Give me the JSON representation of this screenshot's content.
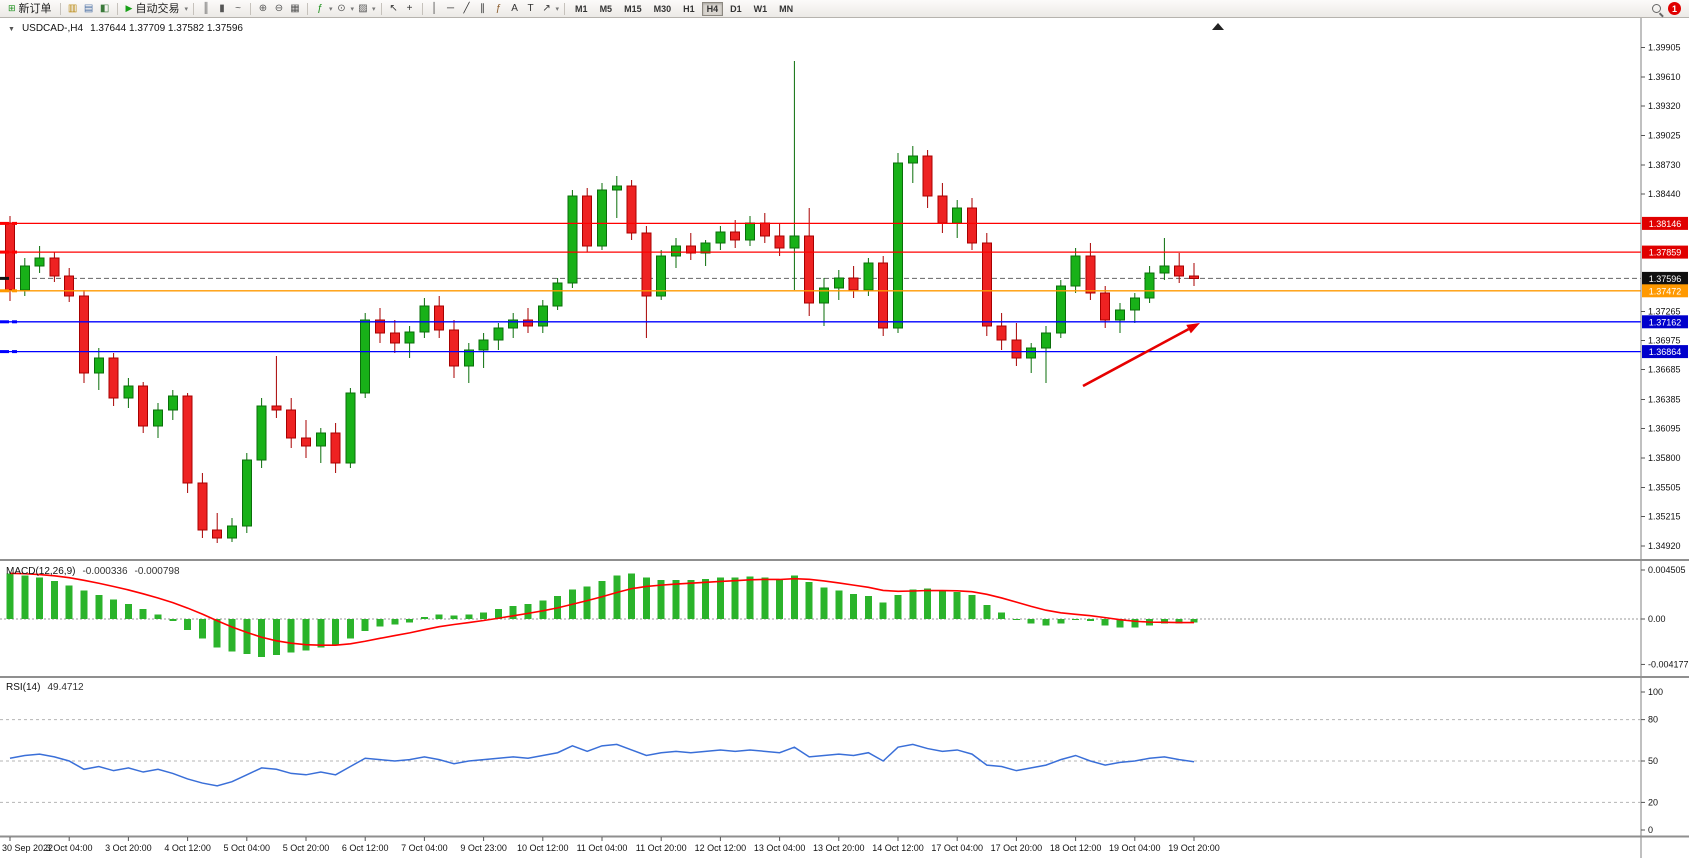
{
  "toolbar": {
    "groups": [
      {
        "items": [
          {
            "kind": "labeled",
            "name": "new-order-button",
            "glyph": "⊞",
            "glyph_color": "#1a8f1a",
            "label": "新订单"
          }
        ]
      },
      {
        "items": [
          {
            "kind": "icon",
            "name": "market-watch-icon",
            "glyph": "▥",
            "color": "#b8860b"
          },
          {
            "kind": "icon",
            "name": "data-window-icon",
            "glyph": "▤",
            "color": "#4a6fa5"
          },
          {
            "kind": "icon",
            "name": "navigator-icon",
            "glyph": "◧",
            "color": "#3a7a3a"
          }
        ]
      },
      {
        "items": [
          {
            "kind": "labeled",
            "name": "autotrading-button",
            "glyph": "▶",
            "glyph_color": "#17a017",
            "label": "自动交易"
          },
          {
            "kind": "caret",
            "name": "autotrading-caret"
          }
        ]
      },
      {
        "items": [
          {
            "kind": "icon",
            "name": "bars-chart-icon",
            "glyph": "║",
            "color": "#555555"
          },
          {
            "kind": "icon",
            "name": "candlestick-chart-icon",
            "glyph": "▮",
            "color": "#555555"
          },
          {
            "kind": "icon",
            "name": "line-chart-icon",
            "glyph": "~",
            "color": "#555555"
          }
        ]
      },
      {
        "items": [
          {
            "kind": "icon",
            "name": "zoom-in-icon",
            "glyph": "⊕",
            "color": "#555555"
          },
          {
            "kind": "icon",
            "name": "zoom-out-icon",
            "glyph": "⊖",
            "color": "#555555"
          },
          {
            "kind": "icon",
            "name": "tile-windows-icon",
            "glyph": "▦",
            "color": "#555555"
          }
        ]
      },
      {
        "items": [
          {
            "kind": "icon",
            "name": "indicators-icon",
            "glyph": "ƒ",
            "color": "#1a8f1a"
          },
          {
            "kind": "caret",
            "name": "indicators-caret"
          },
          {
            "kind": "icon",
            "name": "periods-icon",
            "glyph": "⊙",
            "color": "#555555"
          },
          {
            "kind": "caret",
            "name": "periods-caret"
          },
          {
            "kind": "icon",
            "name": "templates-icon",
            "glyph": "▨",
            "color": "#555555"
          },
          {
            "kind": "caret",
            "name": "templates-caret"
          }
        ]
      },
      {
        "items": [
          {
            "kind": "icon",
            "name": "cursor-icon",
            "glyph": "↖",
            "color": "#333333"
          },
          {
            "kind": "icon",
            "name": "crosshair-icon",
            "glyph": "+",
            "color": "#333333"
          }
        ]
      },
      {
        "items": [
          {
            "kind": "icon",
            "name": "vertical-line-icon",
            "glyph": "│",
            "color": "#333333"
          },
          {
            "kind": "icon",
            "name": "horizontal-line-icon",
            "glyph": "─",
            "color": "#333333"
          },
          {
            "kind": "icon",
            "name": "trendline-icon",
            "glyph": "╱",
            "color": "#333333"
          },
          {
            "kind": "icon",
            "name": "equidistant-channel-icon",
            "glyph": "∥",
            "color": "#333333"
          },
          {
            "kind": "icon",
            "name": "fibonacci-icon",
            "glyph": "ƒ",
            "color": "#8a5a2b"
          },
          {
            "kind": "icon",
            "name": "text-icon",
            "glyph": "A",
            "color": "#333333"
          },
          {
            "kind": "icon",
            "name": "text-label-icon",
            "glyph": "T",
            "color": "#333333"
          },
          {
            "kind": "icon",
            "name": "arrows-icon",
            "glyph": "↗",
            "color": "#333333"
          },
          {
            "kind": "caret",
            "name": "arrows-caret"
          }
        ]
      }
    ],
    "timeframes": [
      "M1",
      "M5",
      "M15",
      "M30",
      "H1",
      "H4",
      "D1",
      "W1",
      "MN"
    ],
    "active_timeframe": "H4",
    "right_items": [
      {
        "kind": "mag",
        "name": "search-icon"
      },
      {
        "kind": "badge",
        "name": "notification-badge",
        "text": "1",
        "color": "#e00000"
      }
    ]
  },
  "chart": {
    "menu_glyph": "▼",
    "symbol_period": "USDCAD-,H4",
    "ohlc": "1.37644 1.37709 1.37582 1.37596"
  },
  "indicators": {
    "macd": {
      "label": "MACD(12,26,9)",
      "main_value": "-0.000336",
      "signal_value": "-0.000798"
    },
    "rsi": {
      "label": "RSI(14)",
      "value": "49.4712"
    }
  },
  "colors": {
    "bull": "#18b118",
    "bull_border": "#0a6e0a",
    "bear": "#ee2222",
    "bear_border": "#a80000",
    "macd_bar": "#2bb32b",
    "macd_signal": "#ff0000",
    "rsi_line": "#3a6fd8"
  },
  "hlines": [
    {
      "price": 1.38146,
      "color": "#ff0000"
    },
    {
      "price": 1.37859,
      "color": "#ff0000"
    },
    {
      "price": 1.37472,
      "color": "#ff9900"
    },
    {
      "price": 1.37162,
      "color": "#0000ff"
    },
    {
      "price": 1.36864,
      "color": "#0000ff"
    }
  ],
  "price_axis": {
    "badges": [
      {
        "text": "1.38146",
        "price": 1.38146,
        "color": "#e00000"
      },
      {
        "text": "1.37859",
        "price": 1.37859,
        "color": "#e00000"
      },
      {
        "text": "1.37596",
        "price": 1.37596,
        "color": "#101010"
      },
      {
        "text": "1.37472",
        "price": 1.37472,
        "color": "#ff9900"
      },
      {
        "text": "1.37162",
        "price": 1.37162,
        "color": "#0000cc"
      },
      {
        "text": "1.36864",
        "price": 1.36864,
        "color": "#0000cc"
      }
    ]
  },
  "arrow": {
    "tail": [
      1083,
      368
    ],
    "tip": [
      1200,
      305
    ],
    "color": "#e60000"
  },
  "chart_data": [
    {
      "type": "candlestick",
      "symbol": "USDCAD",
      "period": "H4",
      "current_price": 1.37596,
      "ylim": [
        1.348,
        1.4
      ],
      "price_ticks": [
        "1.39905",
        "1.39610",
        "1.39320",
        "1.39025",
        "1.38730",
        "1.38440",
        "1.37265",
        "1.36975",
        "1.36685",
        "1.36385",
        "1.36095",
        "1.35800",
        "1.35505",
        "1.35215",
        "1.34920"
      ],
      "label_every": 4,
      "x_labels": [
        "30 Sep 2022",
        "3 Oct 04:00",
        "3 Oct 20:00",
        "4 Oct 12:00",
        "5 Oct 04:00",
        "5 Oct 20:00",
        "6 Oct 12:00",
        "7 Oct 04:00",
        "9 Oct 23:00",
        "10 Oct 12:00",
        "11 Oct 04:00",
        "11 Oct 20:00",
        "12 Oct 12:00",
        "13 Oct 04:00",
        "13 Oct 20:00",
        "14 Oct 12:00",
        "17 Oct 04:00",
        "17 Oct 20:00",
        "18 Oct 12:00",
        "19 Oct 04:00",
        "19 Oct 20:00"
      ],
      "candles": [
        [
          1.3815,
          1.3822,
          1.3737,
          1.3748
        ],
        [
          1.3748,
          1.378,
          1.3742,
          1.3772
        ],
        [
          1.3772,
          1.3792,
          1.3765,
          1.378
        ],
        [
          1.378,
          1.3786,
          1.3756,
          1.3762
        ],
        [
          1.3762,
          1.377,
          1.3736,
          1.3742
        ],
        [
          1.3742,
          1.3748,
          1.3655,
          1.3665
        ],
        [
          1.3665,
          1.369,
          1.3648,
          1.368
        ],
        [
          1.368,
          1.3685,
          1.3632,
          1.364
        ],
        [
          1.364,
          1.366,
          1.363,
          1.3652
        ],
        [
          1.3652,
          1.3656,
          1.3605,
          1.3612
        ],
        [
          1.3612,
          1.3635,
          1.36,
          1.3628
        ],
        [
          1.3628,
          1.3648,
          1.3618,
          1.3642
        ],
        [
          1.3642,
          1.3645,
          1.3545,
          1.3555
        ],
        [
          1.3555,
          1.3565,
          1.35,
          1.3508
        ],
        [
          1.3508,
          1.3525,
          1.3495,
          1.35
        ],
        [
          1.35,
          1.352,
          1.3496,
          1.3512
        ],
        [
          1.3512,
          1.3585,
          1.3505,
          1.3578
        ],
        [
          1.3578,
          1.364,
          1.357,
          1.3632
        ],
        [
          1.3632,
          1.3682,
          1.362,
          1.3628
        ],
        [
          1.3628,
          1.364,
          1.359,
          1.36
        ],
        [
          1.36,
          1.3618,
          1.358,
          1.3592
        ],
        [
          1.3592,
          1.361,
          1.3575,
          1.3605
        ],
        [
          1.3605,
          1.3615,
          1.3565,
          1.3575
        ],
        [
          1.3575,
          1.365,
          1.357,
          1.3645
        ],
        [
          1.3645,
          1.3725,
          1.364,
          1.3718
        ],
        [
          1.3718,
          1.373,
          1.3695,
          1.3705
        ],
        [
          1.3705,
          1.3718,
          1.3685,
          1.3695
        ],
        [
          1.3695,
          1.3712,
          1.368,
          1.3706
        ],
        [
          1.3706,
          1.374,
          1.37,
          1.3732
        ],
        [
          1.3732,
          1.3742,
          1.37,
          1.3708
        ],
        [
          1.3708,
          1.3718,
          1.366,
          1.3672
        ],
        [
          1.3672,
          1.3695,
          1.3655,
          1.3688
        ],
        [
          1.3688,
          1.3705,
          1.367,
          1.3698
        ],
        [
          1.3698,
          1.3715,
          1.3688,
          1.371
        ],
        [
          1.371,
          1.3725,
          1.37,
          1.3718
        ],
        [
          1.3718,
          1.373,
          1.3705,
          1.3712
        ],
        [
          1.3712,
          1.3738,
          1.3705,
          1.3732
        ],
        [
          1.3732,
          1.376,
          1.3728,
          1.3755
        ],
        [
          1.3755,
          1.3848,
          1.375,
          1.3842
        ],
        [
          1.3842,
          1.385,
          1.3786,
          1.3792
        ],
        [
          1.3792,
          1.3855,
          1.3788,
          1.3848
        ],
        [
          1.3848,
          1.3862,
          1.382,
          1.3852
        ],
        [
          1.3852,
          1.3858,
          1.3798,
          1.3805
        ],
        [
          1.3805,
          1.3812,
          1.37,
          1.3742
        ],
        [
          1.3742,
          1.3788,
          1.3738,
          1.3782
        ],
        [
          1.3782,
          1.38,
          1.377,
          1.3792
        ],
        [
          1.3792,
          1.3805,
          1.3778,
          1.3785
        ],
        [
          1.3785,
          1.3798,
          1.3772,
          1.3795
        ],
        [
          1.3795,
          1.3812,
          1.3788,
          1.3806
        ],
        [
          1.3806,
          1.3818,
          1.379,
          1.3798
        ],
        [
          1.3798,
          1.3822,
          1.3792,
          1.3815
        ],
        [
          1.3815,
          1.3825,
          1.3795,
          1.3802
        ],
        [
          1.3802,
          1.3815,
          1.3782,
          1.379
        ],
        [
          1.379,
          1.3977,
          1.3748,
          1.3802
        ],
        [
          1.3802,
          1.383,
          1.3722,
          1.3735
        ],
        [
          1.3735,
          1.376,
          1.3712,
          1.375
        ],
        [
          1.375,
          1.3768,
          1.3738,
          1.376
        ],
        [
          1.376,
          1.3772,
          1.374,
          1.3748
        ],
        [
          1.3748,
          1.378,
          1.3742,
          1.3775
        ],
        [
          1.3775,
          1.3782,
          1.3702,
          1.371
        ],
        [
          1.371,
          1.3885,
          1.3705,
          1.3875
        ],
        [
          1.3875,
          1.3892,
          1.3855,
          1.3882
        ],
        [
          1.3882,
          1.3888,
          1.383,
          1.3842
        ],
        [
          1.3842,
          1.3855,
          1.3805,
          1.3815
        ],
        [
          1.3815,
          1.3838,
          1.38,
          1.383
        ],
        [
          1.383,
          1.384,
          1.3788,
          1.3795
        ],
        [
          1.3795,
          1.3805,
          1.3702,
          1.3712
        ],
        [
          1.3712,
          1.3725,
          1.3688,
          1.3698
        ],
        [
          1.3698,
          1.3715,
          1.3672,
          1.368
        ],
        [
          1.368,
          1.3695,
          1.3665,
          1.369
        ],
        [
          1.369,
          1.3712,
          1.3655,
          1.3705
        ],
        [
          1.3705,
          1.3758,
          1.37,
          1.3752
        ],
        [
          1.3752,
          1.379,
          1.3745,
          1.3782
        ],
        [
          1.3782,
          1.3795,
          1.3738,
          1.3745
        ],
        [
          1.3745,
          1.3752,
          1.371,
          1.3718
        ],
        [
          1.3718,
          1.3735,
          1.3705,
          1.3728
        ],
        [
          1.3728,
          1.3745,
          1.3715,
          1.374
        ],
        [
          1.374,
          1.3772,
          1.3735,
          1.3765
        ],
        [
          1.3765,
          1.38,
          1.3758,
          1.3772
        ],
        [
          1.3772,
          1.3785,
          1.3755,
          1.3762
        ],
        [
          1.3762,
          1.3775,
          1.3752,
          1.37596
        ]
      ]
    },
    {
      "type": "bar",
      "name": "MACD(12,26,9)",
      "main_value": -0.000336,
      "signal_value": -0.000798,
      "axis_labels": [
        "0.004505",
        "0.00",
        "-0.004177"
      ],
      "values": [
        0.0042,
        0.004,
        0.0038,
        0.0035,
        0.0031,
        0.0026,
        0.0022,
        0.0018,
        0.0014,
        0.0009,
        0.0004,
        -0.0002,
        -0.001,
        -0.0018,
        -0.0026,
        -0.003,
        -0.0032,
        -0.0035,
        -0.0033,
        -0.0031,
        -0.0029,
        -0.0026,
        -0.0024,
        -0.0018,
        -0.0011,
        -0.0007,
        -0.0005,
        -0.0003,
        0.0002,
        0.0004,
        0.0003,
        0.0004,
        0.0006,
        0.0009,
        0.0012,
        0.0014,
        0.0017,
        0.0021,
        0.0027,
        0.003,
        0.0035,
        0.004,
        0.0042,
        0.0038,
        0.0036,
        0.0036,
        0.0036,
        0.0037,
        0.0038,
        0.0038,
        0.0039,
        0.0038,
        0.0036,
        0.004,
        0.0034,
        0.0029,
        0.0026,
        0.0023,
        0.0021,
        0.0015,
        0.0022,
        0.0027,
        0.0028,
        0.0026,
        0.0025,
        0.0022,
        0.0013,
        0.0006,
        0.0,
        -0.0004,
        -0.0006,
        -0.0004,
        -0.0001,
        -0.0002,
        -0.0006,
        -0.0008,
        -0.0008,
        -0.0006,
        -0.0004,
        -0.0004,
        -0.000336
      ]
    },
    {
      "type": "line",
      "name": "RSI(14)",
      "current_value": 49.4712,
      "levels": [
        80,
        50,
        20
      ],
      "axis_labels": [
        "100",
        "80",
        "50",
        "20",
        "0"
      ],
      "values": [
        52,
        54,
        55,
        53,
        50,
        44,
        46,
        43,
        45,
        42,
        44,
        41,
        37,
        34,
        32,
        35,
        40,
        45,
        44,
        41,
        40,
        42,
        40,
        46,
        52,
        51,
        50,
        51,
        53,
        51,
        48,
        50,
        51,
        52,
        53,
        52,
        54,
        56,
        61,
        57,
        61,
        62,
        58,
        54,
        56,
        57,
        56,
        57,
        58,
        57,
        58,
        57,
        56,
        60,
        53,
        54,
        55,
        54,
        56,
        50,
        60,
        62,
        59,
        57,
        58,
        55,
        47,
        46,
        43,
        45,
        47,
        51,
        54,
        50,
        47,
        49,
        50,
        52,
        53,
        51,
        49.47
      ]
    }
  ]
}
